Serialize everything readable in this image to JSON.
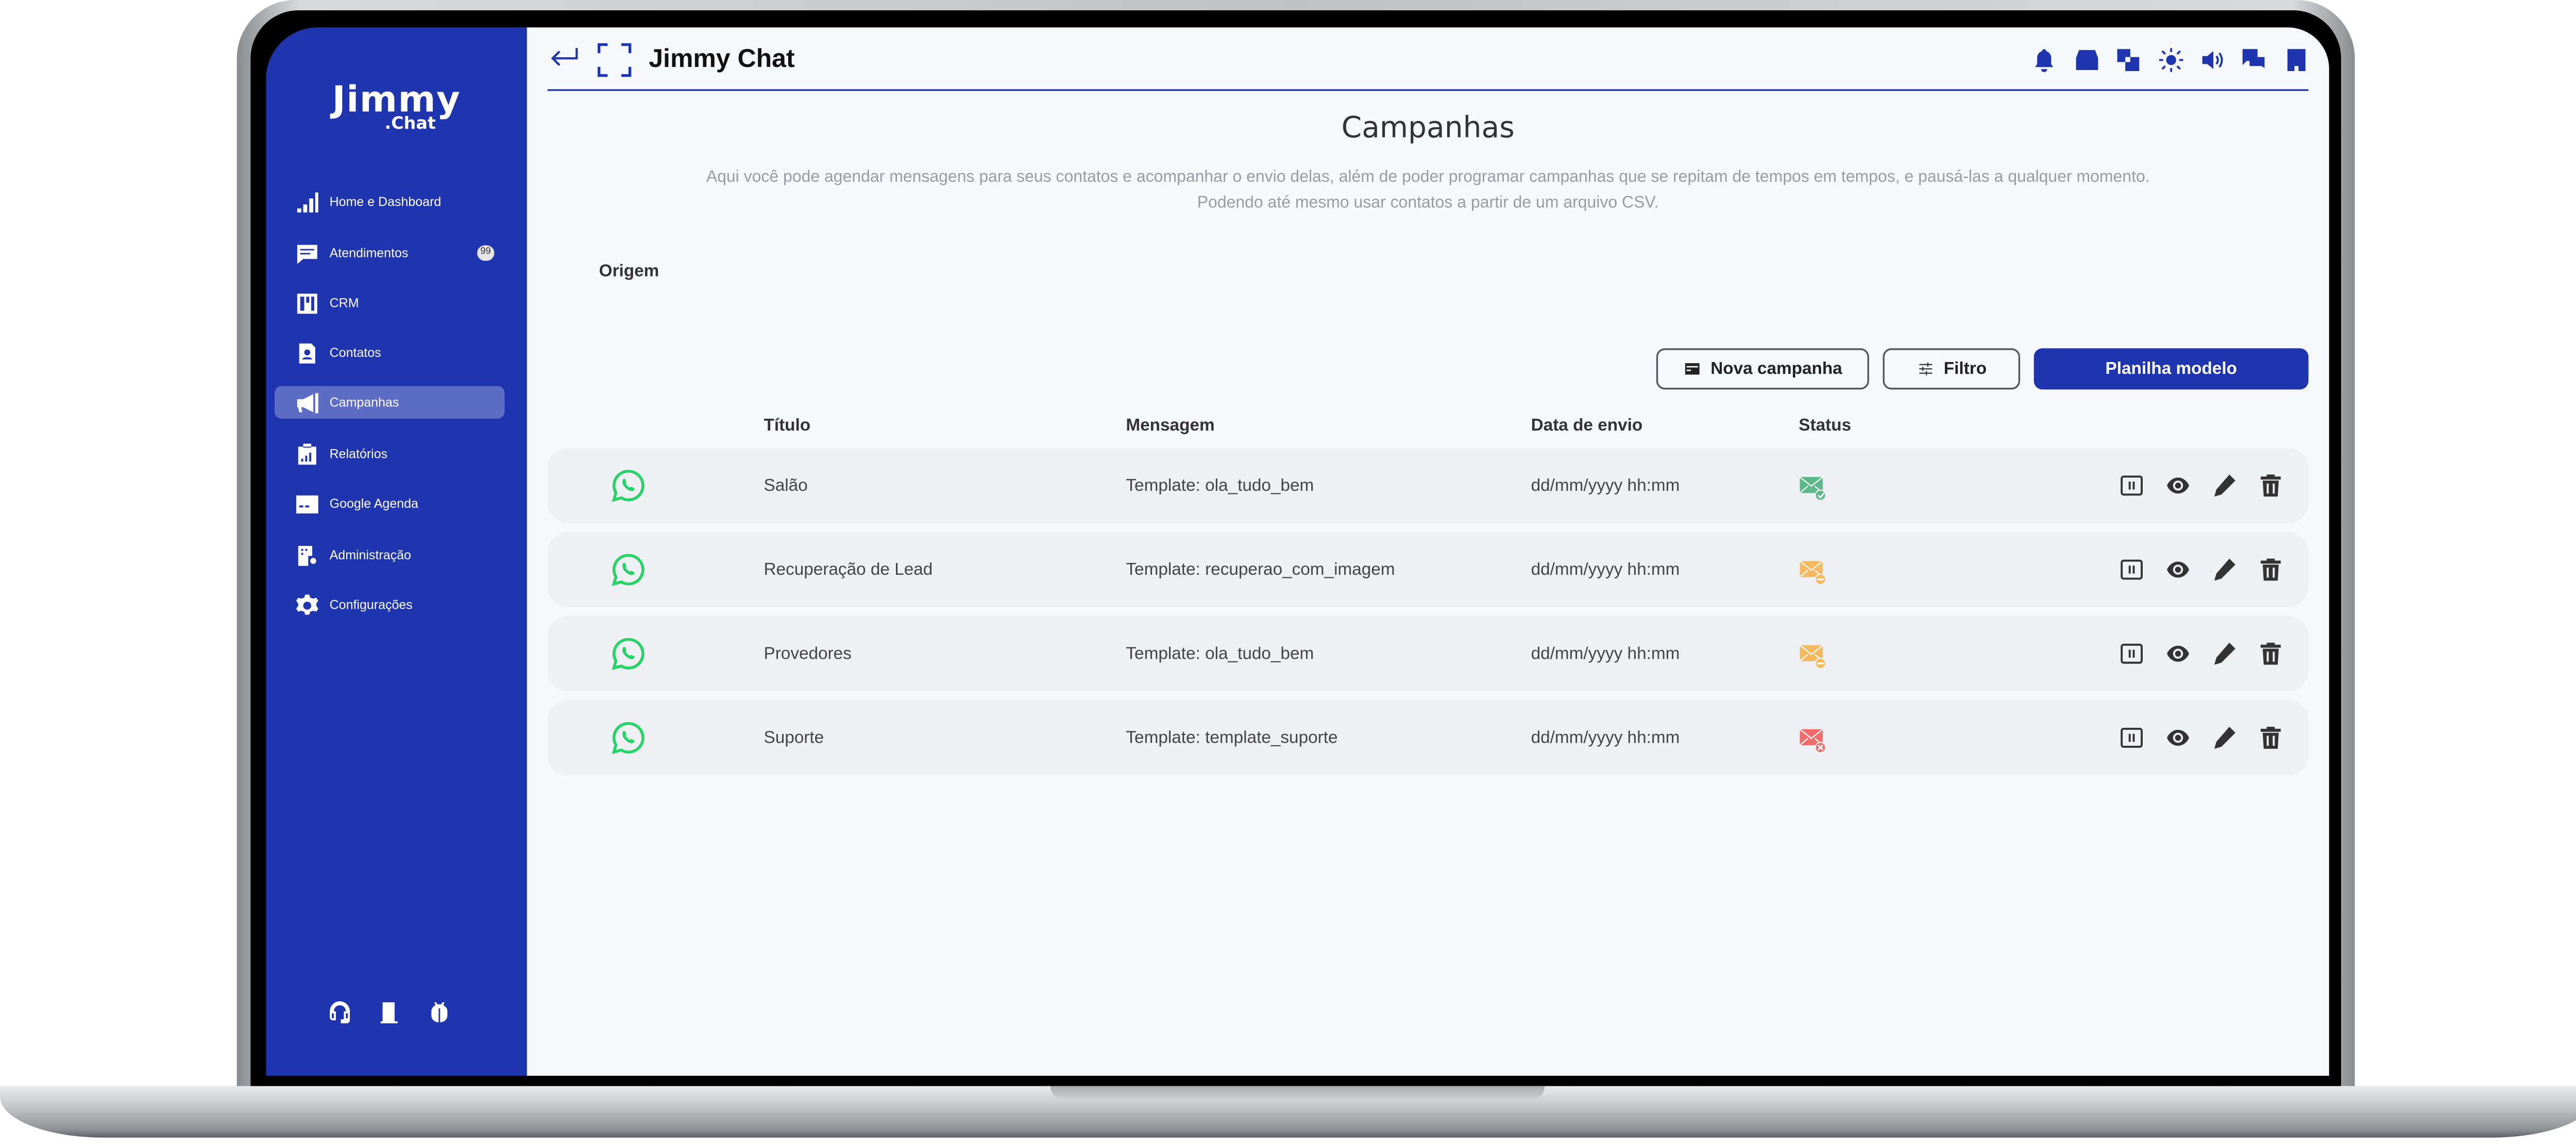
{
  "app": {
    "logo_line1": "Jimmy",
    "logo_line2": ".Chat",
    "header_title": "Jimmy Chat"
  },
  "colors": {
    "brand": "#1f35b0",
    "status_sent": "#5bb888",
    "status_pending": "#f7b860",
    "status_error": "#f26b6b",
    "whatsapp": "#25d366"
  },
  "sidebar": {
    "items": [
      {
        "label": "Home e Dashboard",
        "icon": "bar-chart-icon"
      },
      {
        "label": "Atendimentos",
        "icon": "message-icon",
        "badge": "99"
      },
      {
        "label": "CRM",
        "icon": "kanban-icon"
      },
      {
        "label": "Contatos",
        "icon": "contact-icon"
      },
      {
        "label": "Campanhas",
        "icon": "megaphone-icon",
        "active": true
      },
      {
        "label": "Relatórios",
        "icon": "report-icon"
      },
      {
        "label": "Google Agenda",
        "icon": "calendar-icon"
      },
      {
        "label": "Administração",
        "icon": "building-gear-icon"
      },
      {
        "label": "Configurações",
        "icon": "gear-icon"
      }
    ],
    "bottom_icons": [
      "headset-icon",
      "door-icon",
      "bug-icon"
    ]
  },
  "header_icons": [
    "bell-icon",
    "inbox-icon",
    "translate-icon",
    "sun-icon",
    "volume-icon",
    "chat-icon",
    "building-icon"
  ],
  "page": {
    "title": "Campanhas",
    "description": "Aqui você pode agendar mensagens para seus contatos e acompanhar o envio delas, além de poder programar campanhas que se repitam de tempos em tempos, e pausá-las a qualquer momento. Podendo até mesmo usar contatos a partir de um arquivo CSV.",
    "origin_label": "Origem",
    "buttons": {
      "new": "Nova campanha",
      "filter": "Filtro",
      "template": "Planilha modelo"
    },
    "columns": {
      "title": "Título",
      "message": "Mensagem",
      "date": "Data de envio",
      "status": "Status"
    },
    "rows": [
      {
        "title": "Salão",
        "message": "Template: ola_tudo_bem",
        "date": "dd/mm/yyyy  hh:mm",
        "status": "sent"
      },
      {
        "title": "Recuperação de Lead",
        "message": "Template: recuperao_com_imagem",
        "date": "dd/mm/yyyy  hh:mm",
        "status": "pending"
      },
      {
        "title": "Provedores",
        "message": "Template: ola_tudo_bem",
        "date": "dd/mm/yyyy  hh:mm",
        "status": "pending"
      },
      {
        "title": "Suporte",
        "message": "Template: template_suporte",
        "date": "dd/mm/yyyy  hh:mm",
        "status": "error"
      }
    ]
  }
}
